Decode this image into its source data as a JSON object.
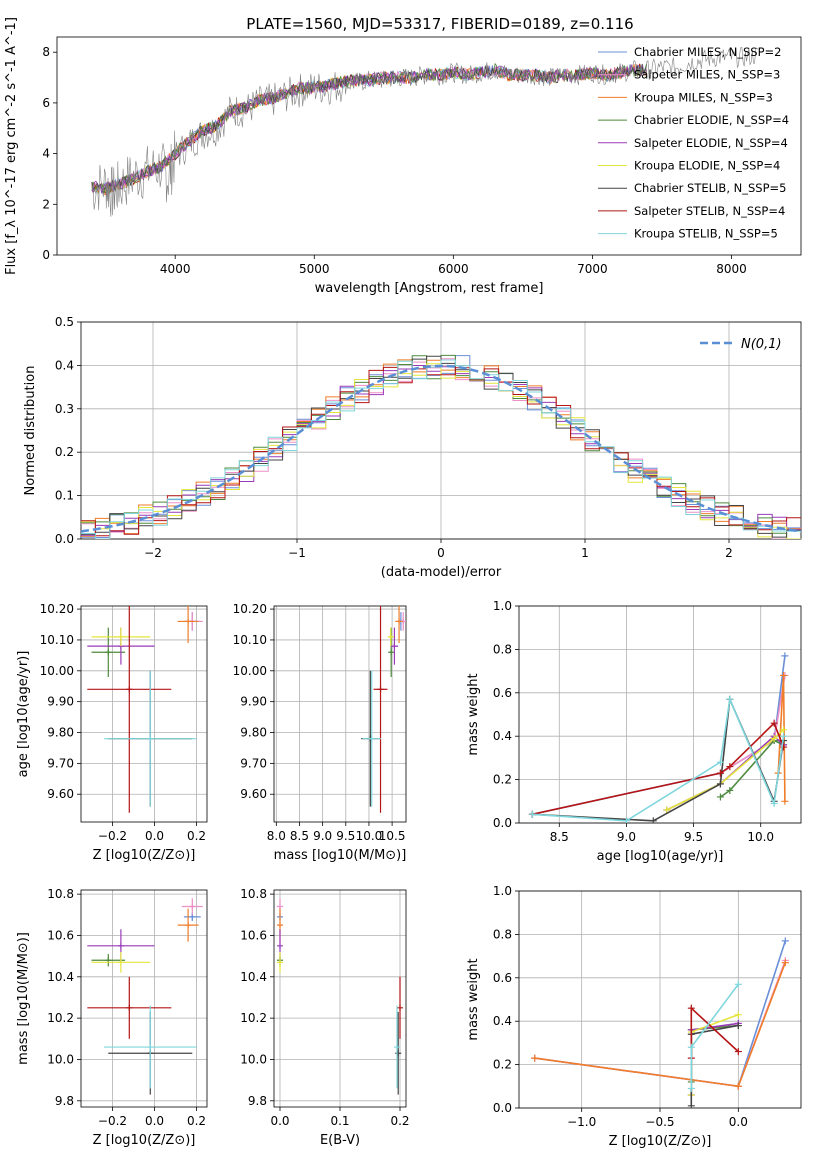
{
  "title": "PLATE=1560, MJD=53317, FIBERID=0189, z=0.116",
  "legend_items": [
    {
      "label": "Chabrier MILES, N_SSP=2",
      "color": "#6a8fd8"
    },
    {
      "label": "Salpeter MILES, N_SSP=3",
      "color": "#ee8fc7"
    },
    {
      "label": "Kroupa MILES, N_SSP=3",
      "color": "#ef7d2a"
    },
    {
      "label": "Chabrier ELODIE, N_SSP=4",
      "color": "#4e8a3e"
    },
    {
      "label": "Salpeter ELODIE, N_SSP=4",
      "color": "#9a3ab8"
    },
    {
      "label": "Kroupa ELODIE, N_SSP=4",
      "color": "#e4e53c"
    },
    {
      "label": "Chabrier STELIB, N_SSP=5",
      "color": "#444444"
    },
    {
      "label": "Salpeter STELIB, N_SSP=4",
      "color": "#b51515"
    },
    {
      "label": "Kroupa STELIB, N_SSP=5",
      "color": "#7fd6dc"
    }
  ],
  "chart_data": [
    {
      "id": "spectrum",
      "type": "line",
      "xlabel": "wavelength [Angstrom, rest frame]",
      "ylabel": "Flux [f_λ 10^-17 erg cm^-2 s^-1 A^-1]",
      "xlim": [
        3150,
        8500
      ],
      "ylim": [
        0,
        8.6
      ],
      "xticks": [
        4000,
        5000,
        6000,
        7000,
        8000
      ],
      "yticks": [
        0,
        2,
        4,
        6,
        8
      ],
      "grid": false,
      "legend": "right",
      "data_series": {
        "name": "",
        "color": "#808080",
        "x": [
          3400,
          3500,
          3550,
          3600,
          3700,
          3800,
          3900,
          3950,
          4000,
          4100,
          4200,
          4300,
          4400,
          4500,
          4600,
          4700,
          4800,
          4900,
          5000,
          5100,
          5200,
          5300,
          5400,
          5500,
          5600,
          5700,
          5800,
          5900,
          6000,
          6100,
          6200,
          6300,
          6400,
          6500,
          6600,
          6700,
          6800,
          6900,
          7000,
          7100,
          7200,
          7300,
          7400,
          7500,
          7600,
          7700,
          7800,
          7900,
          8000,
          8100,
          8200
        ],
        "y": [
          2.6,
          2.8,
          2.4,
          2.7,
          3.1,
          3.3,
          3.5,
          3.0,
          3.9,
          4.4,
          4.8,
          5.0,
          5.7,
          5.7,
          6.0,
          6.1,
          6.3,
          6.5,
          6.6,
          6.6,
          6.7,
          6.8,
          6.9,
          6.9,
          7.0,
          7.0,
          7.1,
          7.1,
          7.2,
          7.1,
          7.2,
          7.3,
          7.1,
          7.1,
          7.1,
          7.0,
          7.1,
          7.1,
          7.2,
          7.1,
          7.2,
          7.3,
          7.3,
          7.4,
          7.4,
          7.6,
          7.7,
          7.8,
          7.8,
          7.8,
          7.9
        ]
      },
      "model_x": [
        3400,
        3500,
        3600,
        3700,
        3800,
        3900,
        4000,
        4100,
        4200,
        4300,
        4400,
        4500,
        4600,
        4700,
        4800,
        4900,
        5000,
        5100,
        5200,
        5300,
        5400,
        5500,
        5600,
        5700,
        5800,
        5900,
        6000,
        6100,
        6200,
        6300,
        6400,
        6500,
        6600,
        6700,
        6800,
        6900,
        7000,
        7100,
        7200,
        7300,
        7400
      ],
      "model_y": [
        2.7,
        2.6,
        2.8,
        3.0,
        3.3,
        3.5,
        4.0,
        4.5,
        4.9,
        5.1,
        5.7,
        5.8,
        6.1,
        6.2,
        6.4,
        6.6,
        6.6,
        6.7,
        6.8,
        6.9,
        6.9,
        7.0,
        7.0,
        7.0,
        7.1,
        7.1,
        7.2,
        7.1,
        7.2,
        7.3,
        7.1,
        7.1,
        7.1,
        7.0,
        7.1,
        7.1,
        7.2,
        7.1,
        7.2,
        7.3,
        7.3
      ]
    },
    {
      "id": "residuals",
      "type": "line",
      "xlabel": "(data-model)/error",
      "ylabel": "Normed distribution",
      "xlim": [
        -2.5,
        2.5
      ],
      "ylim": [
        0,
        0.5
      ],
      "xticks": [
        -2,
        -1,
        0,
        1,
        2
      ],
      "yticks": [
        0.0,
        0.1,
        0.2,
        0.3,
        0.4,
        0.5
      ],
      "grid": true,
      "legend": "top-right",
      "legend_label": "N(0,1)",
      "bin_width": 0.1,
      "gaussian": {
        "mean": 0,
        "sigma": 1,
        "color": "#5a8fd6"
      }
    },
    {
      "id": "age_vs_Z",
      "type": "scatter",
      "xlabel": "Z [log10(Z/Z⊙)]",
      "ylabel": "age [log10(age/yr)]",
      "xlim": [
        -0.35,
        0.25
      ],
      "ylim": [
        9.51,
        10.21
      ],
      "xticks": [
        -0.2,
        0.0,
        0.2
      ],
      "yticks": [
        9.6,
        9.7,
        9.8,
        9.9,
        10.0,
        10.1,
        10.2
      ],
      "grid": true,
      "points": [
        {
          "series": 0,
          "x": 0.18,
          "y": 10.16,
          "xerr": 0.04,
          "yerr": 0.03
        },
        {
          "series": 1,
          "x": 0.18,
          "y": 10.16,
          "xerr": 0.05,
          "yerr": 0.03
        },
        {
          "series": 2,
          "x": 0.16,
          "y": 10.16,
          "xerr": 0.05,
          "yerr": 0.07
        },
        {
          "series": 3,
          "x": -0.22,
          "y": 10.06,
          "xerr": 0.08,
          "yerr": 0.08
        },
        {
          "series": 4,
          "x": -0.16,
          "y": 10.08,
          "xerr": 0.16,
          "yerr": 0.06
        },
        {
          "series": 5,
          "x": -0.16,
          "y": 10.11,
          "xerr": 0.14,
          "yerr": 0.03
        },
        {
          "series": 6,
          "x": -0.02,
          "y": 9.78,
          "xerr": 0.2,
          "yerr": 0.22
        },
        {
          "series": 7,
          "x": -0.12,
          "y": 9.94,
          "xerr": 0.2,
          "yerr": 0.4
        },
        {
          "series": 8,
          "x": -0.02,
          "y": 9.78,
          "xerr": 0.22,
          "yerr": 0.22
        }
      ]
    },
    {
      "id": "age_vs_mass",
      "type": "scatter",
      "xlabel": "mass [log10(M/M⊙)]",
      "ylabel": "",
      "xlim": [
        7.95,
        10.8
      ],
      "ylim": [
        9.51,
        10.21
      ],
      "xticks": [
        8.0,
        8.5,
        9.0,
        9.5,
        10.0,
        10.5
      ],
      "yticks": [
        9.6,
        9.7,
        9.8,
        9.9,
        10.0,
        10.1,
        10.2
      ],
      "grid": true,
      "points": [
        {
          "series": 0,
          "x": 10.69,
          "y": 10.16,
          "xerr": 0.02,
          "yerr": 0.03
        },
        {
          "series": 1,
          "x": 10.74,
          "y": 10.16,
          "xerr": 0.04,
          "yerr": 0.03
        },
        {
          "series": 2,
          "x": 10.65,
          "y": 10.16,
          "xerr": 0.08,
          "yerr": 0.07
        },
        {
          "series": 3,
          "x": 10.48,
          "y": 10.06,
          "xerr": 0.03,
          "yerr": 0.08
        },
        {
          "series": 4,
          "x": 10.55,
          "y": 10.08,
          "xerr": 0.08,
          "yerr": 0.06
        },
        {
          "series": 5,
          "x": 10.47,
          "y": 10.11,
          "xerr": 0.05,
          "yerr": 0.03
        },
        {
          "series": 6,
          "x": 10.03,
          "y": 9.78,
          "xerr": 0.2,
          "yerr": 0.22
        },
        {
          "series": 7,
          "x": 10.25,
          "y": 9.94,
          "xerr": 0.15,
          "yerr": 0.4
        },
        {
          "series": 8,
          "x": 10.06,
          "y": 9.78,
          "xerr": 0.2,
          "yerr": 0.22
        }
      ]
    },
    {
      "id": "weight_vs_age",
      "type": "line",
      "xlabel": "age [log10(age/yr)]",
      "ylabel": "mass weight",
      "xlim": [
        8.2,
        10.3
      ],
      "ylim": [
        0,
        1
      ],
      "xticks": [
        8.5,
        9.0,
        9.5,
        10.0
      ],
      "yticks": [
        0.0,
        0.2,
        0.4,
        0.6,
        0.8,
        1.0
      ],
      "grid": true,
      "series": [
        {
          "color_index": 0,
          "x": [
            8.3,
            9.7,
            10.1,
            10.18
          ],
          "y": [
            0.04,
            0.23,
            0.38,
            0.77
          ]
        },
        {
          "color_index": 1,
          "x": [
            9.7,
            10.1,
            10.18
          ],
          "y": [
            0.23,
            0.38,
            0.68
          ]
        },
        {
          "color_index": 2,
          "x": [
            10.13,
            10.17,
            10.18
          ],
          "y": [
            0.23,
            0.68,
            0.1
          ]
        },
        {
          "color_index": 3,
          "x": [
            9.7,
            9.77,
            10.1,
            10.17
          ],
          "y": [
            0.12,
            0.15,
            0.38,
            0.36
          ]
        },
        {
          "color_index": 4,
          "x": [
            9.3,
            9.7,
            10.1,
            10.17
          ],
          "y": [
            0.06,
            0.18,
            0.4,
            0.36
          ]
        },
        {
          "color_index": 5,
          "x": [
            9.3,
            9.7,
            10.1,
            10.17
          ],
          "y": [
            0.06,
            0.18,
            0.39,
            0.43
          ]
        },
        {
          "color_index": 6,
          "x": [
            8.3,
            9.2,
            9.7,
            9.77,
            10.1,
            10.17
          ],
          "y": [
            0.04,
            0.01,
            0.18,
            0.57,
            0.1,
            0.38
          ]
        },
        {
          "color_index": 7,
          "x": [
            8.3,
            9.7,
            9.77,
            10.1,
            10.17
          ],
          "y": [
            0.04,
            0.23,
            0.26,
            0.46,
            0.35
          ]
        },
        {
          "color_index": 8,
          "x": [
            8.3,
            9.0,
            9.7,
            9.77,
            10.1,
            10.17
          ],
          "y": [
            0.04,
            0.01,
            0.28,
            0.57,
            0.09,
            0.4
          ]
        }
      ]
    },
    {
      "id": "mass_vs_Z",
      "type": "scatter",
      "xlabel": "Z [log10(Z/Z⊙)]",
      "ylabel": "mass [log10(M/M⊙)]",
      "xlim": [
        -0.35,
        0.25
      ],
      "ylim": [
        9.77,
        10.82
      ],
      "xticks": [
        -0.2,
        0.0,
        0.2
      ],
      "yticks": [
        9.8,
        10.0,
        10.2,
        10.4,
        10.6,
        10.8
      ],
      "grid": true,
      "points": [
        {
          "series": 0,
          "x": 0.18,
          "y": 10.69,
          "xerr": 0.04,
          "yerr": 0.02
        },
        {
          "series": 1,
          "x": 0.18,
          "y": 10.74,
          "xerr": 0.05,
          "yerr": 0.04
        },
        {
          "series": 2,
          "x": 0.16,
          "y": 10.65,
          "xerr": 0.05,
          "yerr": 0.08
        },
        {
          "series": 3,
          "x": -0.22,
          "y": 10.48,
          "xerr": 0.08,
          "yerr": 0.03
        },
        {
          "series": 4,
          "x": -0.16,
          "y": 10.55,
          "xerr": 0.16,
          "yerr": 0.08
        },
        {
          "series": 5,
          "x": -0.16,
          "y": 10.47,
          "xerr": 0.14,
          "yerr": 0.05
        },
        {
          "series": 6,
          "x": -0.02,
          "y": 10.03,
          "xerr": 0.2,
          "yerr": 0.2
        },
        {
          "series": 7,
          "x": -0.12,
          "y": 10.25,
          "xerr": 0.2,
          "yerr": 0.15
        },
        {
          "series": 8,
          "x": -0.02,
          "y": 10.06,
          "xerr": 0.22,
          "yerr": 0.2
        }
      ]
    },
    {
      "id": "mass_vs_EBV",
      "type": "scatter",
      "xlabel": "E(B-V)",
      "ylabel": "",
      "xlim": [
        -0.01,
        0.21
      ],
      "ylim": [
        9.77,
        10.82
      ],
      "xticks": [
        0.0,
        0.1,
        0.2
      ],
      "yticks": [
        9.8,
        10.0,
        10.2,
        10.4,
        10.6,
        10.8
      ],
      "grid": true,
      "points": [
        {
          "series": 0,
          "x": 0.0,
          "y": 10.69,
          "xerr": 0,
          "yerr": 0.02
        },
        {
          "series": 1,
          "x": 0.0,
          "y": 10.74,
          "xerr": 0,
          "yerr": 0.04
        },
        {
          "series": 2,
          "x": 0.0,
          "y": 10.65,
          "xerr": 0,
          "yerr": 0.08
        },
        {
          "series": 3,
          "x": 0.0,
          "y": 10.48,
          "xerr": 0,
          "yerr": 0.03
        },
        {
          "series": 4,
          "x": 0.0,
          "y": 10.55,
          "xerr": 0,
          "yerr": 0.08
        },
        {
          "series": 5,
          "x": 0.0,
          "y": 10.47,
          "xerr": 0,
          "yerr": 0.05
        },
        {
          "series": 6,
          "x": 0.197,
          "y": 10.03,
          "xerr": 0,
          "yerr": 0.2
        },
        {
          "series": 7,
          "x": 0.2,
          "y": 10.25,
          "xerr": 0,
          "yerr": 0.15
        },
        {
          "series": 8,
          "x": 0.195,
          "y": 10.06,
          "xerr": 0,
          "yerr": 0.2
        }
      ]
    },
    {
      "id": "weight_vs_Z",
      "type": "line",
      "xlabel": "Z [log10(Z/Z⊙)]",
      "ylabel": "mass weight",
      "xlim": [
        -1.4,
        0.4
      ],
      "ylim": [
        0,
        1
      ],
      "xticks": [
        -1.0,
        -0.5,
        0.0
      ],
      "yticks": [
        0.0,
        0.2,
        0.4,
        0.6,
        0.8,
        1.0
      ],
      "grid": true,
      "series": [
        {
          "color_index": 0,
          "x": [
            -1.3,
            0.0,
            0.3
          ],
          "y": [
            0.23,
            0.1,
            0.77
          ]
        },
        {
          "color_index": 1,
          "x": [
            -1.3,
            0.0,
            0.3
          ],
          "y": [
            0.23,
            0.1,
            0.68
          ]
        },
        {
          "color_index": 2,
          "x": [
            -1.3,
            0.0,
            0.3
          ],
          "y": [
            0.23,
            0.1,
            0.67
          ]
        },
        {
          "color_index": 3,
          "x": [
            -0.3,
            -0.3,
            0.0
          ],
          "y": [
            0.12,
            0.36,
            0.38
          ]
        },
        {
          "color_index": 4,
          "x": [
            -0.3,
            -0.3,
            0.0
          ],
          "y": [
            0.06,
            0.36,
            0.39
          ]
        },
        {
          "color_index": 5,
          "x": [
            -0.3,
            -0.3,
            0.0
          ],
          "y": [
            0.06,
            0.35,
            0.43
          ]
        },
        {
          "color_index": 6,
          "x": [
            -0.3,
            -0.3,
            0.0
          ],
          "y": [
            0.01,
            0.34,
            0.38
          ]
        },
        {
          "color_index": 7,
          "x": [
            -0.3,
            -0.3,
            0.0
          ],
          "y": [
            0.23,
            0.46,
            0.26
          ]
        },
        {
          "color_index": 8,
          "x": [
            -0.3,
            -0.3,
            0.0
          ],
          "y": [
            0.09,
            0.28,
            0.57
          ]
        }
      ]
    }
  ]
}
